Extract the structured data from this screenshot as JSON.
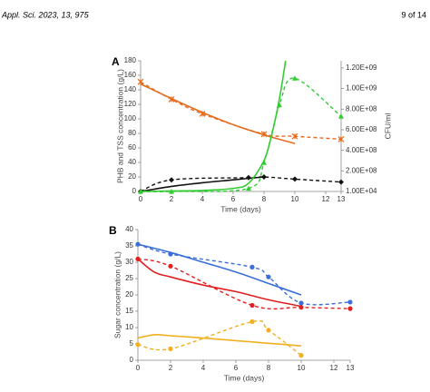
{
  "header": {
    "journal": "Appl. Sci. 2023, 13, 975",
    "page": "9 of 14"
  },
  "chart_data": [
    {
      "type": "line",
      "panel": "A",
      "xlabel": "Time (days)",
      "ylabel": "PHB and TSS concentration (g/L)",
      "y2label": "CFU/ml",
      "xlim": [
        0,
        13
      ],
      "xticks": [
        0,
        2,
        4,
        6,
        8,
        10,
        12,
        13
      ],
      "ylim": [
        0,
        180
      ],
      "yticks": [
        0,
        20,
        40,
        60,
        80,
        100,
        120,
        140,
        160,
        180
      ],
      "y2lim": [
        0,
        1270000000
      ],
      "y2ticks": [
        {
          "value": 10000,
          "label": "1.00E+04"
        },
        {
          "value": 200000000,
          "label": "2.00E+08"
        },
        {
          "value": 400000000,
          "label": "4.00E+08"
        },
        {
          "value": 600000000,
          "label": "6.00E+08"
        },
        {
          "value": 800000000,
          "label": "8.00E+08"
        },
        {
          "value": 1000000000,
          "label": "1.00E+09"
        },
        {
          "value": 1200000000,
          "label": "1.20E+09"
        }
      ],
      "series": [
        {
          "color": "#e46c1e",
          "style": "dashed",
          "marker": "star",
          "x": [
            0,
            2,
            4,
            8,
            10,
            13
          ],
          "values": [
            151,
            127,
            107,
            79,
            76,
            72
          ]
        },
        {
          "color": "#e46c1e",
          "style": "solid",
          "x": [
            0,
            2,
            4,
            6,
            8,
            10
          ],
          "values": [
            148,
            128,
            109,
            92,
            78,
            66
          ]
        },
        {
          "color": "#111111",
          "style": "dashed",
          "marker": "diamond",
          "x": [
            0,
            2,
            7,
            8,
            10,
            13
          ],
          "values": [
            0,
            16,
            19,
            20,
            17,
            13
          ]
        },
        {
          "color": "#111111",
          "style": "solid",
          "x": [
            0,
            2,
            4,
            6,
            8
          ],
          "values": [
            0,
            7,
            12,
            16,
            20
          ]
        },
        {
          "color": "#33cc33",
          "style": "dashed",
          "marker": "triangle",
          "axis": "y2",
          "x": [
            0,
            2,
            7,
            8,
            9,
            10,
            13
          ],
          "values": [
            10000,
            10000,
            30000000,
            280000000,
            840000000,
            1100000000,
            730000000
          ]
        },
        {
          "color": "#33cc33",
          "style": "solid",
          "axis": "y2",
          "x": [
            0,
            2,
            4,
            6,
            7,
            8,
            8.5,
            9,
            9.4
          ],
          "values": [
            0,
            5000000,
            10000000,
            30000000,
            80000000,
            300000000,
            550000000,
            900000000,
            1270000000
          ]
        }
      ]
    },
    {
      "type": "line",
      "panel": "B",
      "xlabel": "Time (days)",
      "ylabel": "Sugar concentration (g/L)",
      "xlim": [
        0,
        13
      ],
      "xticks": [
        0,
        2,
        4,
        6,
        8,
        10,
        12,
        13
      ],
      "ylim": [
        0,
        40
      ],
      "yticks": [
        0,
        5,
        10,
        15,
        20,
        25,
        30,
        35,
        40
      ],
      "series": [
        {
          "color": "#3a6fd8",
          "style": "dashed",
          "marker": "circle",
          "x": [
            0,
            2,
            7,
            8,
            10,
            13
          ],
          "values": [
            35.5,
            32.5,
            28.5,
            25.5,
            17.5,
            17.8
          ]
        },
        {
          "color": "#3a6fd8",
          "style": "solid",
          "x": [
            0,
            2,
            4,
            6,
            8,
            10
          ],
          "values": [
            35.5,
            33,
            30,
            27,
            23.5,
            20
          ]
        },
        {
          "color": "#e02020",
          "style": "dashed",
          "marker": "circle",
          "x": [
            0,
            2,
            7,
            10,
            13
          ],
          "values": [
            31,
            28.8,
            16.8,
            16.2,
            15.8
          ]
        },
        {
          "color": "#e02020",
          "style": "solid",
          "x": [
            0,
            1,
            2,
            4,
            6,
            8,
            10
          ],
          "values": [
            31,
            27,
            25.5,
            23,
            21,
            18.5,
            16.5
          ]
        },
        {
          "color": "#f0b020",
          "style": "dashed",
          "marker": "circle",
          "x": [
            0,
            2,
            7,
            8,
            10
          ],
          "values": [
            4.8,
            3.5,
            11.8,
            9.2,
            1.5
          ]
        },
        {
          "color": "#f0b020",
          "style": "solid",
          "x": [
            0,
            1,
            2,
            4,
            6,
            8,
            10
          ],
          "values": [
            6.8,
            7.8,
            7.5,
            6.8,
            6.0,
            5.2,
            4.4
          ]
        }
      ]
    }
  ]
}
